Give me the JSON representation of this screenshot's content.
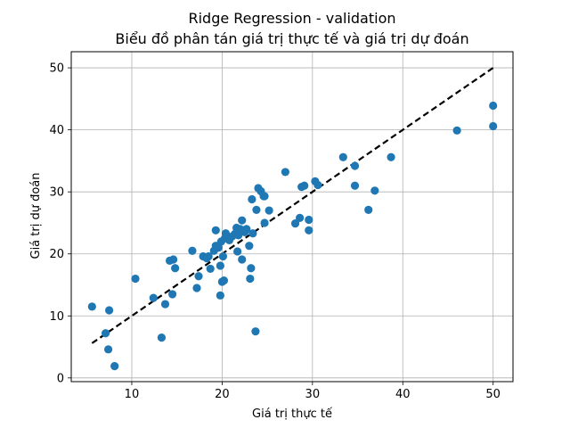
{
  "chart_data": {
    "type": "scatter",
    "title": "Ridge Regression - validation",
    "subtitle": "Biểu đồ phân tán giá trị thực tế và giá trị dự đoán",
    "xlabel": "Giá trị thực tế",
    "ylabel": "Giá trị dự đoán",
    "xlim": [
      3.3,
      52.2
    ],
    "ylim": [
      -0.6,
      52.6
    ],
    "xticks": [
      10,
      20,
      30,
      40,
      50
    ],
    "yticks": [
      0,
      10,
      20,
      30,
      40,
      50
    ],
    "grid": true,
    "point_color": "#1f77b4",
    "reference_line": {
      "style": "dashed",
      "color": "#000000",
      "x": [
        5.6,
        50.0
      ],
      "y": [
        5.6,
        50.0
      ]
    },
    "points": [
      {
        "x": 5.6,
        "y": 11.5
      },
      {
        "x": 7.1,
        "y": 7.2
      },
      {
        "x": 7.4,
        "y": 4.6
      },
      {
        "x": 7.5,
        "y": 10.9
      },
      {
        "x": 8.1,
        "y": 1.9
      },
      {
        "x": 10.4,
        "y": 16.0
      },
      {
        "x": 12.4,
        "y": 12.9
      },
      {
        "x": 13.3,
        "y": 6.5
      },
      {
        "x": 13.7,
        "y": 11.9
      },
      {
        "x": 14.2,
        "y": 18.9
      },
      {
        "x": 14.5,
        "y": 13.5
      },
      {
        "x": 14.6,
        "y": 19.1
      },
      {
        "x": 14.8,
        "y": 17.7
      },
      {
        "x": 16.7,
        "y": 20.5
      },
      {
        "x": 17.2,
        "y": 14.5
      },
      {
        "x": 17.4,
        "y": 16.4
      },
      {
        "x": 17.9,
        "y": 19.6
      },
      {
        "x": 18.3,
        "y": 19.3
      },
      {
        "x": 18.5,
        "y": 19.6
      },
      {
        "x": 18.7,
        "y": 17.6
      },
      {
        "x": 19.1,
        "y": 20.5
      },
      {
        "x": 19.3,
        "y": 21.3
      },
      {
        "x": 19.3,
        "y": 23.8
      },
      {
        "x": 19.6,
        "y": 21.0
      },
      {
        "x": 19.8,
        "y": 18.1
      },
      {
        "x": 19.8,
        "y": 13.3
      },
      {
        "x": 19.9,
        "y": 22.0
      },
      {
        "x": 20.0,
        "y": 15.5
      },
      {
        "x": 20.1,
        "y": 19.6
      },
      {
        "x": 20.2,
        "y": 15.7
      },
      {
        "x": 20.3,
        "y": 22.5
      },
      {
        "x": 20.4,
        "y": 23.3
      },
      {
        "x": 20.8,
        "y": 22.2
      },
      {
        "x": 21.1,
        "y": 22.8
      },
      {
        "x": 21.4,
        "y": 23.2
      },
      {
        "x": 21.6,
        "y": 24.2
      },
      {
        "x": 21.7,
        "y": 20.4
      },
      {
        "x": 21.8,
        "y": 23.0
      },
      {
        "x": 22.0,
        "y": 24.0
      },
      {
        "x": 22.2,
        "y": 19.1
      },
      {
        "x": 22.2,
        "y": 25.4
      },
      {
        "x": 22.5,
        "y": 23.5
      },
      {
        "x": 22.7,
        "y": 24.0
      },
      {
        "x": 23.0,
        "y": 21.3
      },
      {
        "x": 23.1,
        "y": 16.0
      },
      {
        "x": 23.2,
        "y": 17.7
      },
      {
        "x": 23.3,
        "y": 28.8
      },
      {
        "x": 23.4,
        "y": 23.3
      },
      {
        "x": 23.7,
        "y": 7.5
      },
      {
        "x": 23.8,
        "y": 27.1
      },
      {
        "x": 24.0,
        "y": 30.6
      },
      {
        "x": 24.3,
        "y": 30.1
      },
      {
        "x": 24.6,
        "y": 29.3
      },
      {
        "x": 24.7,
        "y": 29.3
      },
      {
        "x": 24.7,
        "y": 25.0
      },
      {
        "x": 25.2,
        "y": 27.0
      },
      {
        "x": 27.0,
        "y": 33.2
      },
      {
        "x": 28.1,
        "y": 24.9
      },
      {
        "x": 28.6,
        "y": 25.8
      },
      {
        "x": 28.8,
        "y": 30.8
      },
      {
        "x": 29.1,
        "y": 31.0
      },
      {
        "x": 29.6,
        "y": 25.5
      },
      {
        "x": 29.6,
        "y": 23.8
      },
      {
        "x": 30.3,
        "y": 31.7
      },
      {
        "x": 30.6,
        "y": 31.1
      },
      {
        "x": 33.4,
        "y": 35.6
      },
      {
        "x": 34.7,
        "y": 34.2
      },
      {
        "x": 34.7,
        "y": 31.0
      },
      {
        "x": 36.2,
        "y": 27.1
      },
      {
        "x": 36.9,
        "y": 30.2
      },
      {
        "x": 38.7,
        "y": 35.6
      },
      {
        "x": 46.0,
        "y": 39.9
      },
      {
        "x": 50.0,
        "y": 43.9
      },
      {
        "x": 50.0,
        "y": 40.6
      }
    ]
  }
}
